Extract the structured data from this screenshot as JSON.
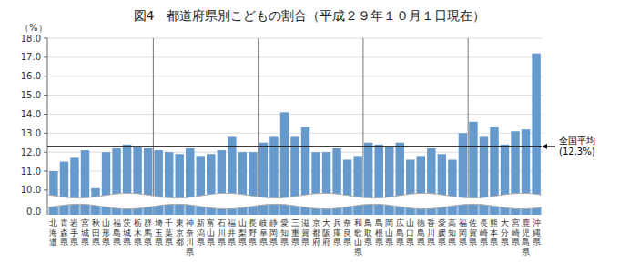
{
  "chart_data": {
    "type": "bar",
    "title": "図4　都道府県別こどもの割合（平成２９年１０月１日現在）",
    "y_label": "（%）",
    "categories": [
      "北海道",
      "青森県",
      "岩手県",
      "宮城県",
      "秋田県",
      "山形県",
      "福島県",
      "茨城県",
      "栃木県",
      "群馬県",
      "埼玉県",
      "千葉県",
      "東京都",
      "神奈川県",
      "新潟県",
      "富山県",
      "石川県",
      "福井県",
      "山梨県",
      "長野県",
      "岐阜県",
      "静岡県",
      "愛知県",
      "三重県",
      "滋賀県",
      "京都府",
      "大阪府",
      "兵庫県",
      "奈良県",
      "和歌山県",
      "鳥取県",
      "島根県",
      "岡山県",
      "広島県",
      "山口県",
      "徳島県",
      "香川県",
      "愛媛県",
      "高知県",
      "福岡県",
      "佐賀県",
      "長崎県",
      "熊本県",
      "大分県",
      "宮崎県",
      "鹿児島県",
      "沖縄県"
    ],
    "values": [
      11.0,
      11.5,
      11.7,
      12.1,
      10.1,
      12.0,
      12.2,
      12.4,
      12.3,
      12.2,
      12.1,
      12.0,
      11.9,
      12.2,
      11.8,
      11.9,
      12.1,
      12.8,
      12.0,
      12.0,
      12.5,
      12.8,
      14.1,
      12.8,
      13.3,
      12.0,
      12.0,
      12.2,
      11.6,
      11.8,
      12.5,
      12.4,
      12.3,
      12.5,
      11.6,
      11.8,
      12.2,
      11.9,
      11.6,
      13.0,
      13.6,
      12.8,
      13.3,
      12.4,
      13.1,
      13.2,
      17.2
    ],
    "color": "#6699CC",
    "ylim": [
      8.7,
      18.0
    ],
    "yticks": [
      {
        "value": 10.0,
        "label": "10.0"
      },
      {
        "value": 11.0,
        "label": "11.0"
      },
      {
        "value": 12.0,
        "label": "12.0"
      },
      {
        "value": 13.0,
        "label": "13.0"
      },
      {
        "value": 14.0,
        "label": "14.0"
      },
      {
        "value": 15.0,
        "label": "15.0"
      },
      {
        "value": 16.0,
        "label": "16.0"
      },
      {
        "value": 17.0,
        "label": "17.0"
      },
      {
        "value": 18.0,
        "label": "18.0"
      }
    ],
    "grid": true,
    "average": {
      "value": 12.3,
      "label": "全国平均\n(12.3%)"
    },
    "group_separators": [
      9.5,
      19.5,
      29.5,
      39.5
    ],
    "annotations": [
      {
        "text": "0.0"
      }
    ]
  }
}
